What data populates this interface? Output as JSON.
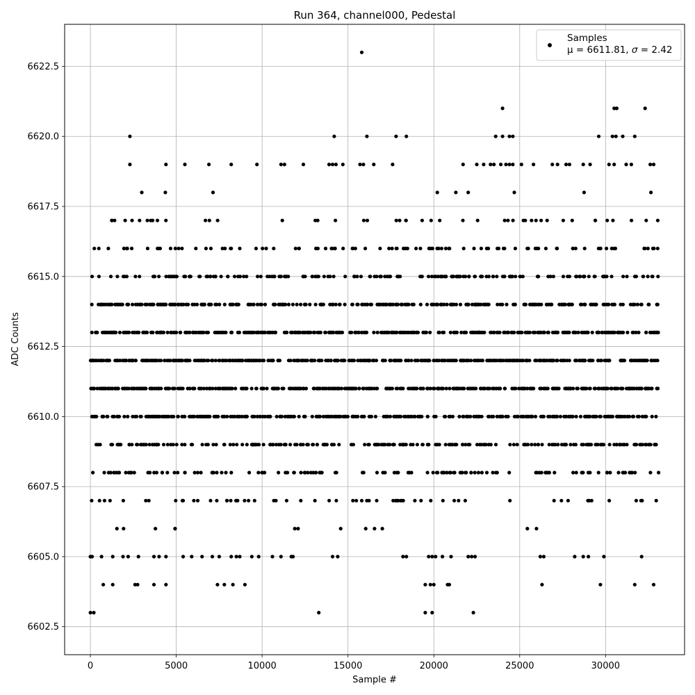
{
  "chart_data": {
    "type": "scatter",
    "title": "Run 364, channel000, Pedestal",
    "xlabel": "Sample #",
    "ylabel": "ADC Counts",
    "xlim": [
      -1500,
      34600
    ],
    "ylim": [
      6601.5,
      6624.0
    ],
    "xticks": [
      0,
      5000,
      10000,
      15000,
      20000,
      25000,
      30000
    ],
    "yticks": [
      6602.5,
      6605.0,
      6607.5,
      6610.0,
      6612.5,
      6615.0,
      6617.5,
      6620.0,
      6622.5
    ],
    "ytick_labels": [
      "6602.5",
      "6605.0",
      "6607.5",
      "6610.0",
      "6612.5",
      "6615.0",
      "6617.5",
      "6620.0",
      "6622.5"
    ],
    "grid": true,
    "legend": {
      "placement": "top-right",
      "series_label": "Samples",
      "stats_prefix": "μ = 6611.81, ",
      "stats_sigma": "σ",
      "stats_suffix": " = 2.42"
    },
    "series": [
      {
        "name": "Samples",
        "color": "#000000",
        "x_range": [
          0,
          33100
        ],
        "mean": 6611.81,
        "std": 2.42,
        "continuous_levels": [
          6606,
          6607,
          6608,
          6609,
          6610,
          6611,
          6612,
          6613,
          6614,
          6615,
          6616,
          6617,
          6618
        ],
        "sparse_points": [
          {
            "x": 15800,
            "y": 6623
          },
          {
            "x": 24000,
            "y": 6621
          },
          {
            "x": 30500,
            "y": 6621
          },
          {
            "x": 30650,
            "y": 6621
          },
          {
            "x": 32300,
            "y": 6621
          },
          {
            "x": 2300,
            "y": 6620
          },
          {
            "x": 14200,
            "y": 6620
          },
          {
            "x": 16100,
            "y": 6620
          },
          {
            "x": 17800,
            "y": 6620
          },
          {
            "x": 18400,
            "y": 6620
          },
          {
            "x": 23600,
            "y": 6620
          },
          {
            "x": 24000,
            "y": 6620
          },
          {
            "x": 24400,
            "y": 6620
          },
          {
            "x": 24600,
            "y": 6620
          },
          {
            "x": 29600,
            "y": 6620
          },
          {
            "x": 30400,
            "y": 6620
          },
          {
            "x": 30600,
            "y": 6620
          },
          {
            "x": 31000,
            "y": 6620
          },
          {
            "x": 31700,
            "y": 6620
          },
          {
            "x": 2300,
            "y": 6619
          },
          {
            "x": 4400,
            "y": 6619
          },
          {
            "x": 5500,
            "y": 6619
          },
          {
            "x": 6900,
            "y": 6619
          },
          {
            "x": 8200,
            "y": 6619
          },
          {
            "x": 9700,
            "y": 6619
          },
          {
            "x": 11100,
            "y": 6619
          },
          {
            "x": 11300,
            "y": 6619
          },
          {
            "x": 12400,
            "y": 6619
          },
          {
            "x": 13900,
            "y": 6619
          },
          {
            "x": 14100,
            "y": 6619
          },
          {
            "x": 14300,
            "y": 6619
          },
          {
            "x": 14700,
            "y": 6619
          },
          {
            "x": 15700,
            "y": 6619
          },
          {
            "x": 15900,
            "y": 6619
          },
          {
            "x": 16500,
            "y": 6619
          },
          {
            "x": 17600,
            "y": 6619
          },
          {
            "x": 21700,
            "y": 6619
          },
          {
            "x": 22500,
            "y": 6619
          },
          {
            "x": 22900,
            "y": 6619
          },
          {
            "x": 23300,
            "y": 6619
          },
          {
            "x": 23500,
            "y": 6619
          },
          {
            "x": 23900,
            "y": 6619
          },
          {
            "x": 24200,
            "y": 6619
          },
          {
            "x": 24400,
            "y": 6619
          },
          {
            "x": 24600,
            "y": 6619
          },
          {
            "x": 25100,
            "y": 6619
          },
          {
            "x": 25800,
            "y": 6619
          },
          {
            "x": 26900,
            "y": 6619
          },
          {
            "x": 27200,
            "y": 6619
          },
          {
            "x": 27700,
            "y": 6619
          },
          {
            "x": 27900,
            "y": 6619
          },
          {
            "x": 28700,
            "y": 6619
          },
          {
            "x": 29100,
            "y": 6619
          },
          {
            "x": 30200,
            "y": 6619
          },
          {
            "x": 30500,
            "y": 6619
          },
          {
            "x": 31200,
            "y": 6619
          },
          {
            "x": 31500,
            "y": 6619
          },
          {
            "x": 32600,
            "y": 6619
          },
          {
            "x": 32800,
            "y": 6619
          },
          {
            "x": 0,
            "y": 6605
          },
          {
            "x": 100,
            "y": 6605
          },
          {
            "x": 650,
            "y": 6605
          },
          {
            "x": 1300,
            "y": 6605
          },
          {
            "x": 1900,
            "y": 6605
          },
          {
            "x": 2200,
            "y": 6605
          },
          {
            "x": 2800,
            "y": 6605
          },
          {
            "x": 3700,
            "y": 6605
          },
          {
            "x": 4000,
            "y": 6605
          },
          {
            "x": 4400,
            "y": 6605
          },
          {
            "x": 5400,
            "y": 6605
          },
          {
            "x": 5900,
            "y": 6605
          },
          {
            "x": 6500,
            "y": 6605
          },
          {
            "x": 7100,
            "y": 6605
          },
          {
            "x": 7500,
            "y": 6605
          },
          {
            "x": 8200,
            "y": 6605
          },
          {
            "x": 8500,
            "y": 6605
          },
          {
            "x": 8700,
            "y": 6605
          },
          {
            "x": 9400,
            "y": 6605
          },
          {
            "x": 9800,
            "y": 6605
          },
          {
            "x": 10600,
            "y": 6605
          },
          {
            "x": 11100,
            "y": 6605
          },
          {
            "x": 11700,
            "y": 6605
          },
          {
            "x": 11800,
            "y": 6605
          },
          {
            "x": 14100,
            "y": 6605
          },
          {
            "x": 14400,
            "y": 6605
          },
          {
            "x": 18200,
            "y": 6605
          },
          {
            "x": 18400,
            "y": 6605
          },
          {
            "x": 19700,
            "y": 6605
          },
          {
            "x": 19900,
            "y": 6605
          },
          {
            "x": 20100,
            "y": 6605
          },
          {
            "x": 20500,
            "y": 6605
          },
          {
            "x": 21000,
            "y": 6605
          },
          {
            "x": 22000,
            "y": 6605
          },
          {
            "x": 22200,
            "y": 6605
          },
          {
            "x": 22400,
            "y": 6605
          },
          {
            "x": 26200,
            "y": 6605
          },
          {
            "x": 26400,
            "y": 6605
          },
          {
            "x": 28200,
            "y": 6605
          },
          {
            "x": 28700,
            "y": 6605
          },
          {
            "x": 29000,
            "y": 6605
          },
          {
            "x": 29900,
            "y": 6605
          },
          {
            "x": 32100,
            "y": 6605
          },
          {
            "x": 750,
            "y": 6604
          },
          {
            "x": 1300,
            "y": 6604
          },
          {
            "x": 2600,
            "y": 6604
          },
          {
            "x": 2750,
            "y": 6604
          },
          {
            "x": 3700,
            "y": 6604
          },
          {
            "x": 4400,
            "y": 6604
          },
          {
            "x": 7400,
            "y": 6604
          },
          {
            "x": 7800,
            "y": 6604
          },
          {
            "x": 8300,
            "y": 6604
          },
          {
            "x": 9000,
            "y": 6604
          },
          {
            "x": 19500,
            "y": 6604
          },
          {
            "x": 19800,
            "y": 6604
          },
          {
            "x": 20000,
            "y": 6604
          },
          {
            "x": 20800,
            "y": 6604
          },
          {
            "x": 20900,
            "y": 6604
          },
          {
            "x": 26300,
            "y": 6604
          },
          {
            "x": 29700,
            "y": 6604
          },
          {
            "x": 31700,
            "y": 6604
          },
          {
            "x": 32800,
            "y": 6604
          },
          {
            "x": 0,
            "y": 6603
          },
          {
            "x": 200,
            "y": 6603
          },
          {
            "x": 13300,
            "y": 6603
          },
          {
            "x": 19500,
            "y": 6603
          },
          {
            "x": 19900,
            "y": 6603
          },
          {
            "x": 22300,
            "y": 6603
          }
        ]
      }
    ]
  }
}
